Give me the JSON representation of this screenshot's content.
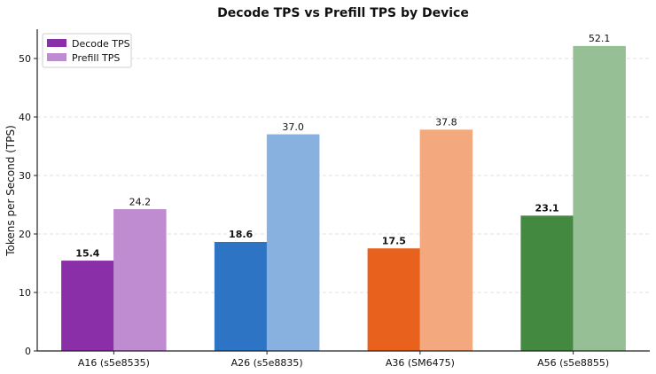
{
  "chart_data": {
    "type": "bar",
    "title": "Decode TPS vs Prefill TPS by Device",
    "xlabel": "",
    "ylabel": "Tokens per Second (TPS)",
    "ylim": [
      0,
      55
    ],
    "yticks": [
      0,
      10,
      20,
      30,
      40,
      50
    ],
    "grid": "horizontal dashed",
    "legend_position": "top-left",
    "categories": [
      "A16 (s5e8535)",
      "A26 (s5e8835)",
      "A36 (SM6475)",
      "A56 (s5e8855)"
    ],
    "series": [
      {
        "name": "Decode TPS",
        "values": [
          15.4,
          18.6,
          17.5,
          23.1
        ],
        "colors": [
          "#8b2fa9",
          "#2d74c5",
          "#e8621e",
          "#43893f"
        ],
        "labels": [
          "15.4",
          "18.6",
          "17.5",
          "23.1"
        ]
      },
      {
        "name": "Prefill TPS",
        "values": [
          24.2,
          37.0,
          37.8,
          52.1
        ],
        "colors": [
          "#bf8bd1",
          "#89b1e0",
          "#f3a87e",
          "#96bf95"
        ],
        "labels": [
          "24.2",
          "37.0",
          "37.8",
          "52.1"
        ]
      }
    ],
    "legend_colors": [
      "#8b2fa9",
      "#bf8bd1"
    ]
  }
}
